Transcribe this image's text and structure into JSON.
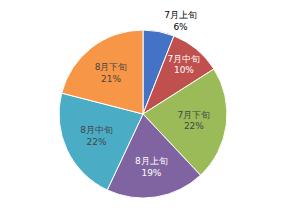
{
  "chart_data": {
    "type": "pie",
    "categories": [
      "7月上旬",
      "7月中旬",
      "7月下旬",
      "8月上旬",
      "8月中旬",
      "8月下旬"
    ],
    "values": [
      6,
      10,
      22,
      19,
      22,
      21
    ],
    "value_labels": [
      "6%",
      "10%",
      "22%",
      "19%",
      "22%",
      "21%"
    ],
    "colors": [
      "#4472C4",
      "#C0504D",
      "#9BBB59",
      "#8064A2",
      "#4BACC6",
      "#F79646"
    ],
    "data_labels": true
  }
}
